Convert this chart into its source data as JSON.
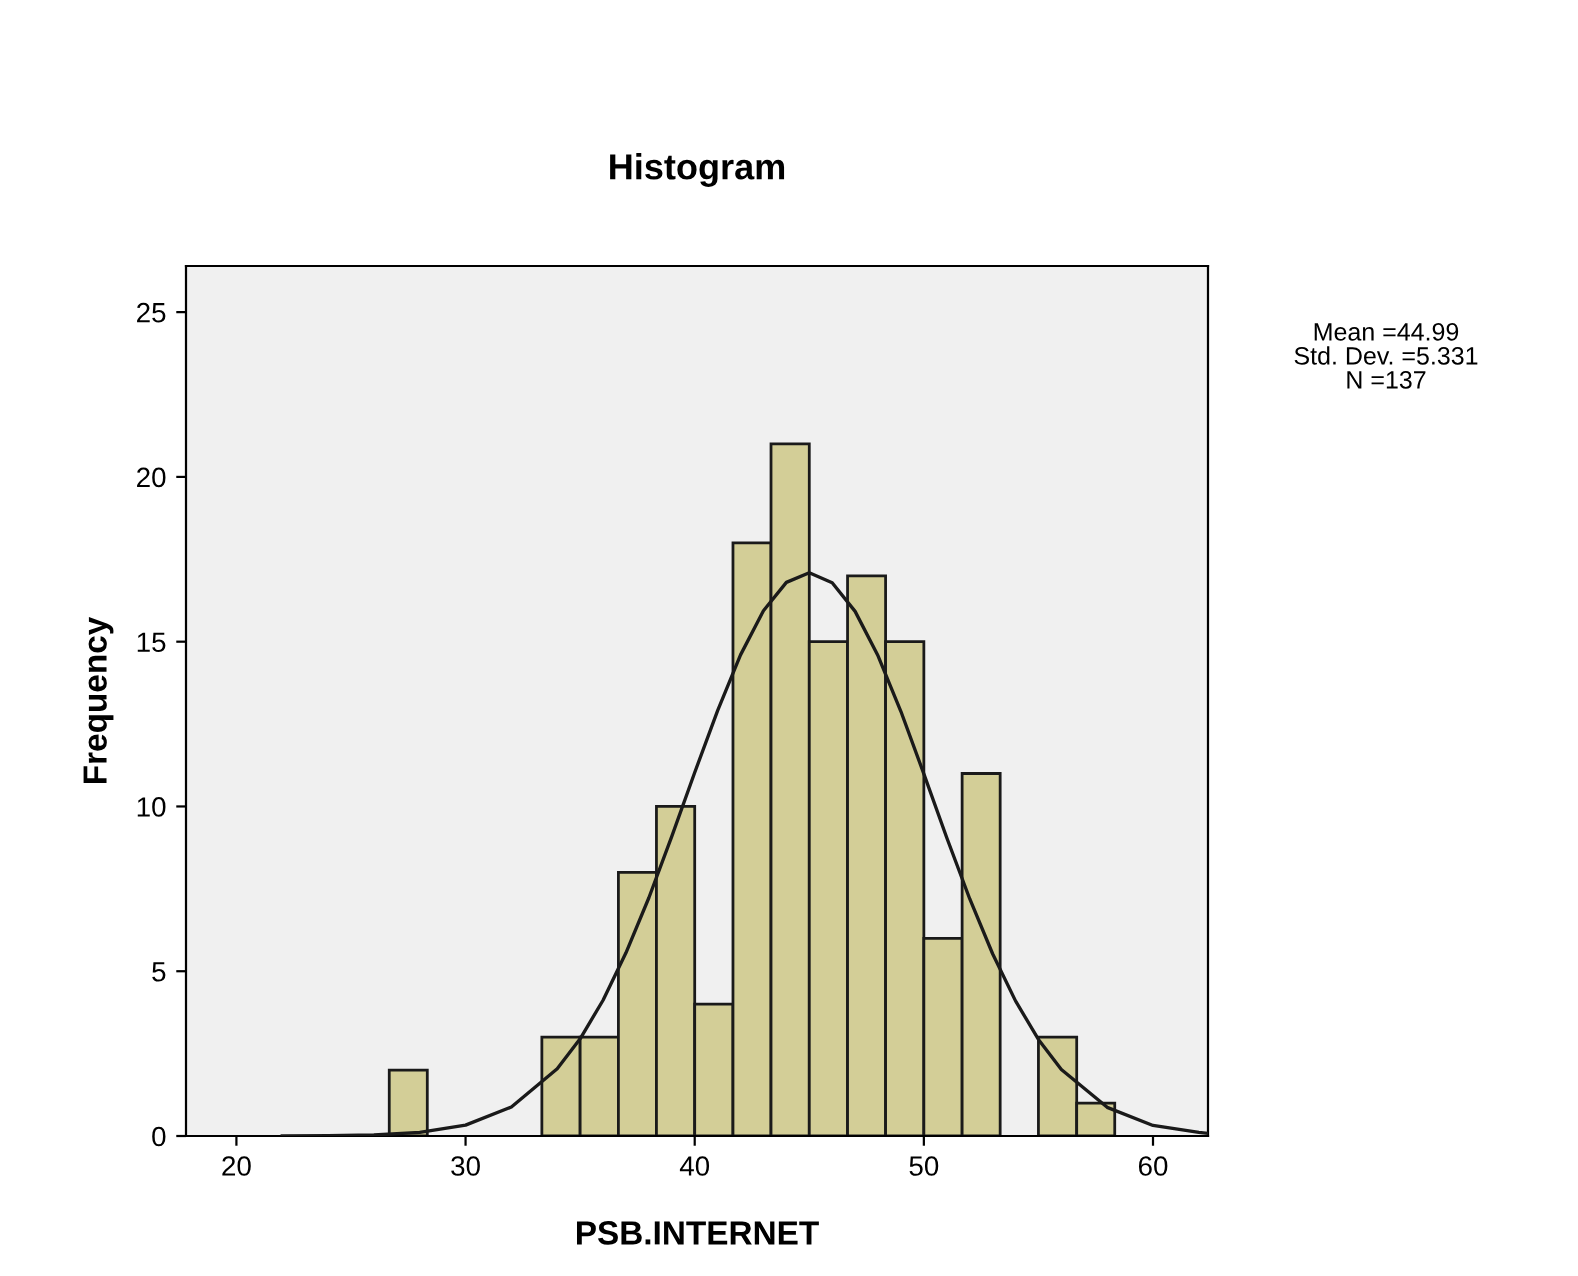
{
  "chart_data": {
    "type": "histogram",
    "title": "Histogram",
    "xlabel": "PSB.INTERNET",
    "ylabel": "Frequency",
    "annotations": [
      "Mean =44.99",
      "Std. Dev. =5.331",
      "N =137"
    ],
    "series": [
      {
        "color": "#d3ce97",
        "bins": [
          26.67,
          28.33,
          30,
          31.67,
          33.33,
          35,
          36.67,
          38.33,
          40,
          41.67,
          43.33,
          45,
          46.67,
          48.33,
          50,
          51.67,
          53.33,
          55,
          56.67,
          58.33
        ],
        "values": [
          2,
          0,
          0,
          0,
          3,
          3,
          8,
          10,
          4,
          18,
          21,
          15,
          17,
          15,
          6,
          11,
          0,
          3,
          1
        ]
      },
      {
        "type": "line",
        "color": "#1a1a1a",
        "x": [
          22,
          24,
          26,
          28,
          30,
          32,
          34,
          35,
          36,
          37,
          38,
          39,
          40,
          41,
          42,
          43,
          44,
          45,
          46,
          47,
          48,
          49,
          50,
          51,
          52,
          53,
          54,
          55,
          56,
          58,
          60,
          62,
          62.4
        ],
        "values": [
          0.0,
          0.01,
          0.03,
          0.11,
          0.33,
          0.88,
          2.04,
          2.95,
          4.12,
          5.56,
          7.23,
          9.09,
          11.03,
          12.91,
          14.6,
          15.94,
          16.8,
          17.09,
          16.79,
          15.92,
          14.57,
          12.88,
          10.99,
          9.05,
          7.2,
          5.53,
          4.1,
          2.93,
          2.02,
          0.87,
          0.32,
          0.11,
          0.08
        ]
      }
    ],
    "xlim": [
      17.8,
      62.4
    ],
    "ylim": [
      0,
      26.4
    ],
    "xticks": [
      20,
      30,
      40,
      50,
      60
    ],
    "yticks": [
      0,
      5,
      10,
      15,
      20,
      25
    ],
    "grid": false,
    "legend": false
  }
}
